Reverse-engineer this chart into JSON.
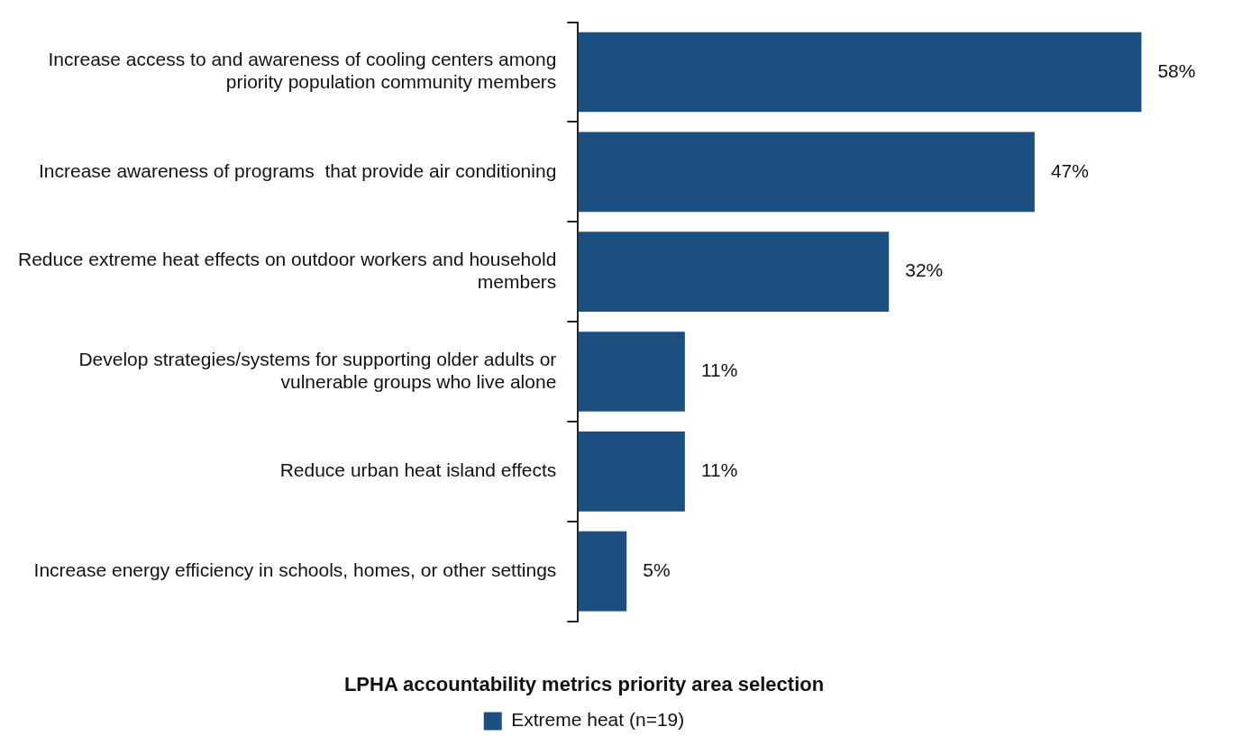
{
  "chart_data": {
    "type": "bar",
    "orientation": "horizontal",
    "categories": [
      "Increase access to and awareness of cooling centers among priority population community members",
      "Increase awareness of programs  that provide air conditioning",
      "Reduce extreme heat effects on outdoor workers and household members",
      "Develop strategies/systems for supporting older adults or vulnerable groups who live alone",
      "Reduce urban heat island effects",
      "Increase energy efficiency in schools, homes, or other settings"
    ],
    "series": [
      {
        "name": "Extreme heat (n=19)",
        "color": "#1b4f7f",
        "values": [
          58,
          47,
          32,
          11,
          11,
          5
        ],
        "value_labels": [
          "58%",
          "47%",
          "32%",
          "11%",
          "11%",
          "5%"
        ]
      }
    ],
    "legend_title": "LPHA accountability metrics priority area selection",
    "legend": "bottom",
    "grid": false
  }
}
